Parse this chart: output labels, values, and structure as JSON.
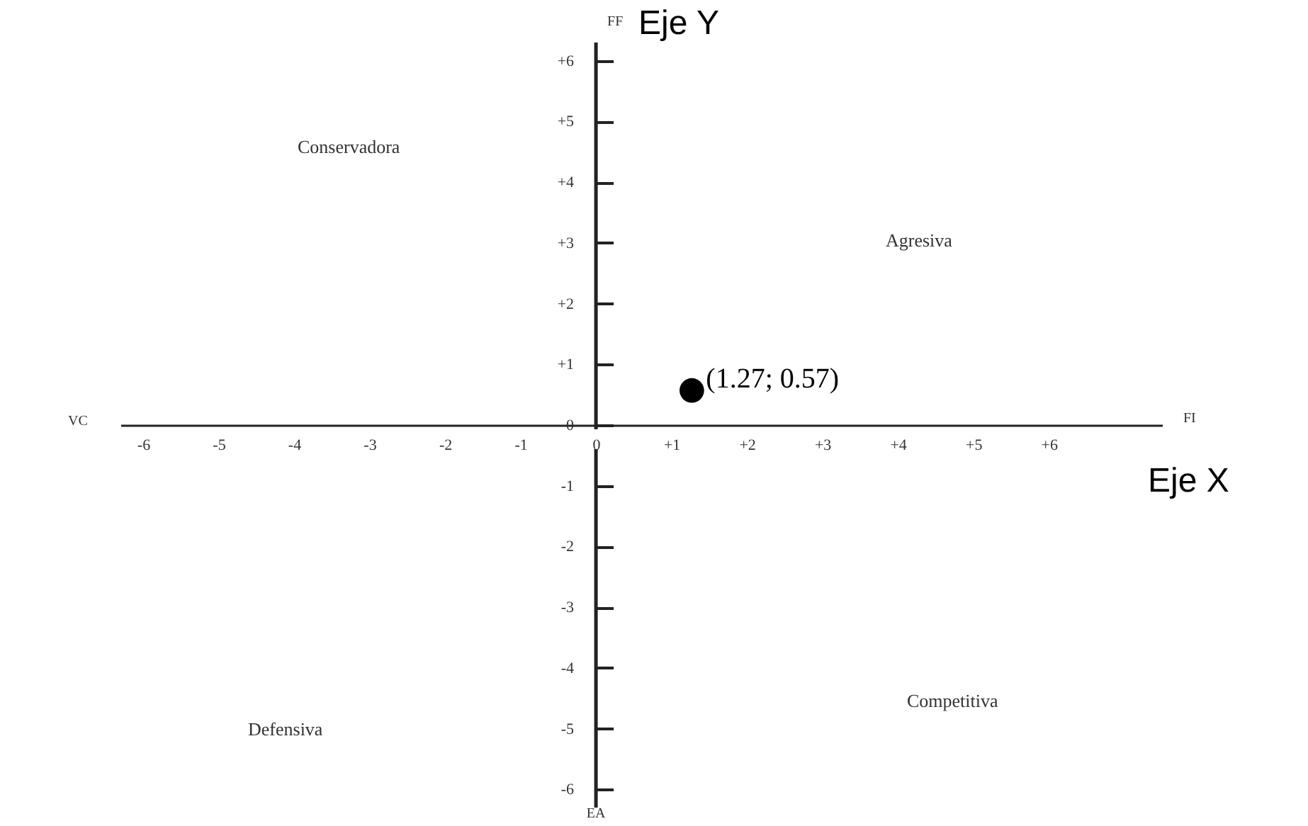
{
  "chart_data": {
    "type": "scatter",
    "xlabel": "Eje X",
    "ylabel": "Eje Y",
    "x": [
      1.27
    ],
    "values": [
      0.57
    ],
    "color": "#000000",
    "marker": "circle",
    "value_labels": [
      "(1.27; 0.57)"
    ],
    "xlim": [
      -6.3,
      7.5
    ],
    "ylim": [
      -6.3,
      6.3
    ],
    "grid": false,
    "xticks": [
      -6,
      -5,
      -4,
      -3,
      -2,
      -1,
      0,
      {
        "value": 1,
        "label": "+1"
      },
      {
        "value": 2,
        "label": "+2"
      },
      {
        "value": 3,
        "label": "+3"
      },
      {
        "value": 4,
        "label": "+4"
      },
      {
        "value": 5,
        "label": "+5"
      },
      {
        "value": 6,
        "label": "+6"
      }
    ],
    "yticks": [
      {
        "value": 6,
        "label": "+6"
      },
      {
        "value": 5,
        "label": "+5"
      },
      {
        "value": 4,
        "label": "+4"
      },
      {
        "value": 3,
        "label": "+3"
      },
      {
        "value": 2,
        "label": "+2"
      },
      {
        "value": 1,
        "label": "+1"
      },
      0,
      -1,
      -2,
      -3,
      -4,
      -5,
      -6
    ],
    "annotations": [
      "Conservadora",
      "Agresiva",
      "Defensiva",
      "Competitiva",
      "FF",
      "FI",
      "VC",
      "EA"
    ]
  }
}
